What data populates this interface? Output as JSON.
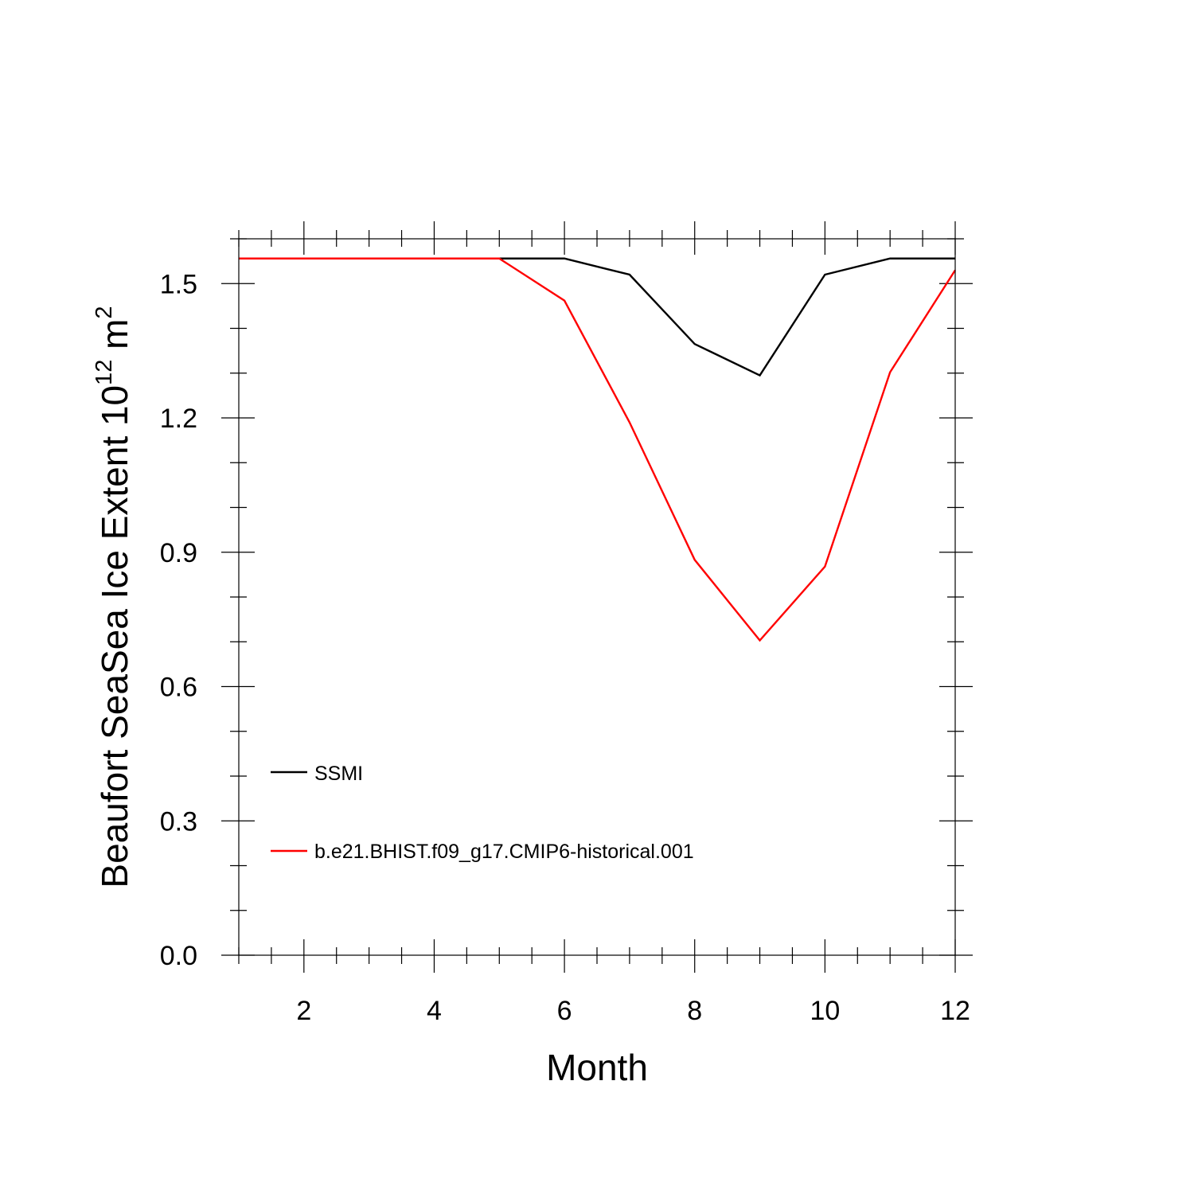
{
  "chart_data": {
    "type": "line",
    "title": "",
    "xlabel": "Month",
    "ylabel": "Beaufort SeaSea Ice Extent 10",
    "ylabel_exponent": "12",
    "ylabel_unit": " m",
    "ylabel_unit_exponent": "2",
    "xlim": [
      1,
      12
    ],
    "ylim": [
      0,
      1.6
    ],
    "x_ticks": [
      2,
      4,
      6,
      8,
      10,
      12
    ],
    "x_tick_labels": [
      "2",
      "4",
      "6",
      "8",
      "10",
      "12"
    ],
    "y_ticks": [
      0.0,
      0.3,
      0.6,
      0.9,
      1.2,
      1.5
    ],
    "y_tick_labels": [
      "0.0",
      "0.3",
      "0.6",
      "0.9",
      "1.2",
      "1.5"
    ],
    "grid": false,
    "legend_position": "bottom-left",
    "x": [
      1,
      2,
      3,
      4,
      5,
      6,
      7,
      8,
      9,
      10,
      11,
      12
    ],
    "series": [
      {
        "name": "SSMI",
        "color": "#000000",
        "values": [
          1.556,
          1.556,
          1.556,
          1.556,
          1.556,
          1.556,
          1.52,
          1.365,
          1.295,
          1.52,
          1.556,
          1.556
        ]
      },
      {
        "name": "b.e21.BHIST.f09_g17.CMIP6-historical.001",
        "color": "#ff0000",
        "values": [
          1.556,
          1.556,
          1.556,
          1.556,
          1.556,
          1.462,
          1.19,
          0.883,
          0.703,
          0.868,
          1.302,
          1.53
        ]
      }
    ]
  }
}
